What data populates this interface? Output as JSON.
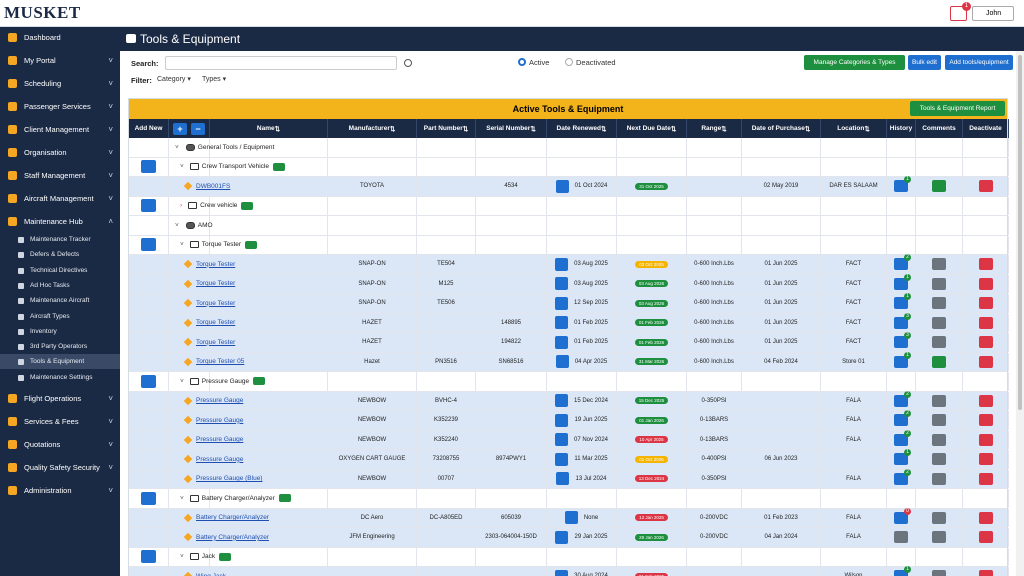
{
  "header": {
    "logo": "MUSKET",
    "notification_count": 1,
    "user": "John"
  },
  "sidebar": {
    "items": [
      {
        "label": "Dashboard",
        "expandable": false
      },
      {
        "label": "My Portal",
        "expandable": true
      },
      {
        "label": "Scheduling",
        "expandable": true
      },
      {
        "label": "Passenger Services",
        "expandable": true
      },
      {
        "label": "Client Management",
        "expandable": true
      },
      {
        "label": "Organisation",
        "expandable": true
      },
      {
        "label": "Staff Management",
        "expandable": true
      },
      {
        "label": "Aircraft Management",
        "expandable": true
      },
      {
        "label": "Maintenance Hub",
        "expandable": true,
        "expanded": true,
        "children": [
          {
            "label": "Maintenance Tracker"
          },
          {
            "label": "Defers & Defects"
          },
          {
            "label": "Technical Directives"
          },
          {
            "label": "Ad Hoc Tasks"
          },
          {
            "label": "Maintenance Aircraft"
          },
          {
            "label": "Aircraft Types"
          },
          {
            "label": "Inventory"
          },
          {
            "label": "3rd Party Operators"
          },
          {
            "label": "Tools & Equipment",
            "active": true
          },
          {
            "label": "Maintenance Settings"
          }
        ]
      },
      {
        "label": "Flight Operations",
        "expandable": true
      },
      {
        "label": "Services & Fees",
        "expandable": true
      },
      {
        "label": "Quotations",
        "expandable": true
      },
      {
        "label": "Quality Safety Security",
        "expandable": true
      },
      {
        "label": "Administration",
        "expandable": true
      }
    ]
  },
  "page": {
    "title": "Tools & Equipment",
    "search_label": "Search:",
    "status_options": [
      {
        "label": "Active",
        "selected": true
      },
      {
        "label": "Deactivated",
        "selected": false
      }
    ],
    "buttons": [
      {
        "label": "Manage Categories & Types",
        "color": "#1e8f3e"
      },
      {
        "label": "Bulk edit",
        "color": "#1f6fd1"
      },
      {
        "label": "Add tools/equipment",
        "color": "#1f6fd1"
      }
    ],
    "filter_label": "Filter:",
    "filters": [
      "Category",
      "Types"
    ]
  },
  "table": {
    "title": "Active Tools & Equipment",
    "report_button": "Tools & Equipment Report",
    "columns": [
      "Add New",
      "Name",
      "Manufacturer",
      "Part Number",
      "Serial Number",
      "Date Renewed",
      "Next Due Date",
      "Range",
      "Date of Purchase",
      "Location",
      "History",
      "Comments",
      "Deactivate"
    ],
    "rows": [
      {
        "kind": "group",
        "name": "General Tools / Equipment"
      },
      {
        "kind": "category",
        "name": "Crew Transport Vehicle",
        "collapsed": false
      },
      {
        "kind": "item",
        "name": "DWB001FS",
        "manufacturer": "TOYOTA",
        "part_number": null,
        "serial_number": "4534",
        "date_renewed": "01 Oct 2024",
        "next_due_date": "31 Oct 2025",
        "due_color": "#1e8f3e",
        "range": null,
        "date_of_purchase": "02 May 2019",
        "location": "DAR ES SALAAM",
        "history_count": 1,
        "comment_color": "#1e8f3e"
      },
      {
        "kind": "category",
        "name": "Crew vehicle",
        "collapsed": true
      },
      {
        "kind": "group",
        "name": "AMO"
      },
      {
        "kind": "category",
        "name": "Torque Tester",
        "collapsed": false
      },
      {
        "kind": "item",
        "name": "Torque Tester",
        "manufacturer": "SNAP-ON",
        "part_number": "TE504",
        "serial_number": null,
        "date_renewed": "03 Aug 2025",
        "next_due_date": "03 Oct 2025",
        "due_color": "#f4b400",
        "range": "0-600 Inch.Lbs",
        "date_of_purchase": "01 Jun 2025",
        "location": "FACT",
        "history_count": 2,
        "comment_color": "#6c757d"
      },
      {
        "kind": "item",
        "name": "Torque Tester",
        "manufacturer": "SNAP-ON",
        "part_number": "M125",
        "serial_number": null,
        "date_renewed": "03 Aug 2025",
        "next_due_date": "03 Aug 2026",
        "due_color": "#1e8f3e",
        "range": "0-600 Inch.Lbs",
        "date_of_purchase": "01 Jun 2025",
        "location": "FACT",
        "history_count": 1,
        "comment_color": "#6c757d"
      },
      {
        "kind": "item",
        "name": "Torque Tester",
        "manufacturer": "SNAP-ON",
        "part_number": "TE506",
        "serial_number": null,
        "date_renewed": "12 Sep 2025",
        "next_due_date": "03 Aug 2026",
        "due_color": "#1e8f3e",
        "range": "0-600 Inch.Lbs",
        "date_of_purchase": "01 Jun 2025",
        "location": "FACT",
        "history_count": 1,
        "comment_color": "#6c757d"
      },
      {
        "kind": "item",
        "name": "Torque Tester",
        "manufacturer": "HAZET",
        "part_number": null,
        "serial_number": "148895",
        "date_renewed": "01 Feb 2025",
        "next_due_date": "01 Feb 2026",
        "due_color": "#1e8f3e",
        "range": "0-600 Inch.Lbs",
        "date_of_purchase": "01 Jun 2025",
        "location": "FACT",
        "history_count": 3,
        "comment_color": "#6c757d"
      },
      {
        "kind": "item",
        "name": "Torque Tester",
        "manufacturer": "HAZET",
        "part_number": null,
        "serial_number": "194822",
        "date_renewed": "01 Feb 2025",
        "next_due_date": "01 Feb 2026",
        "due_color": "#1e8f3e",
        "range": "0-600 Inch.Lbs",
        "date_of_purchase": "01 Jun 2025",
        "location": "FACT",
        "history_count": 3,
        "comment_color": "#6c757d"
      },
      {
        "kind": "item",
        "name": "Torque Tester 05",
        "manufacturer": "Hazet",
        "part_number": "PN3516",
        "serial_number": "SN68516",
        "date_renewed": "04 Apr 2025",
        "next_due_date": "31 Mar 2026",
        "due_color": "#1e8f3e",
        "range": "0-600 Inch.Lbs",
        "date_of_purchase": "04 Feb 2024",
        "location": "Store 01",
        "history_count": 1,
        "comment_color": "#1e8f3e"
      },
      {
        "kind": "category",
        "name": "Pressure Gauge",
        "collapsed": false
      },
      {
        "kind": "item",
        "name": "Pressure Gauge",
        "manufacturer": "NEWBOW",
        "part_number": "BVHC-4",
        "serial_number": null,
        "date_renewed": "15 Dec 2024",
        "next_due_date": "15 Dec 2025",
        "due_color": "#1e8f3e",
        "range": "0-350PSI",
        "date_of_purchase": null,
        "location": "FALA",
        "history_count": 2,
        "comment_color": "#6c757d"
      },
      {
        "kind": "item",
        "name": "Pressure Gauge",
        "manufacturer": "NEWBOW",
        "part_number": "K352239",
        "serial_number": null,
        "date_renewed": "19 Jun 2025",
        "next_due_date": "01 Jan 2026",
        "due_color": "#1e8f3e",
        "range": "0-13BARS",
        "date_of_purchase": null,
        "location": "FALA",
        "history_count": 2,
        "comment_color": "#6c757d"
      },
      {
        "kind": "item",
        "name": "Pressure Gauge",
        "manufacturer": "NEWBOW",
        "part_number": "K352240",
        "serial_number": null,
        "date_renewed": "07 Nov 2024",
        "next_due_date": "10 Apr 2025",
        "due_color": "#dc3545",
        "range": "0-13BARS",
        "date_of_purchase": null,
        "location": "FALA",
        "history_count": 2,
        "comment_color": "#6c757d"
      },
      {
        "kind": "item",
        "name": "Pressure Gauge",
        "manufacturer": "OXYGEN CART GAUGE",
        "part_number": "73208755",
        "serial_number": "8974PWY1",
        "date_renewed": "11 Mar 2025",
        "next_due_date": "01 Oct 2025",
        "due_color": "#f4b400",
        "range": "0-400PSI",
        "date_of_purchase": "06 Jun 2023",
        "location": null,
        "history_count": 1,
        "comment_color": "#6c757d"
      },
      {
        "kind": "item",
        "name": "Pressure Gauge (Blue)",
        "manufacturer": "NEWBOW",
        "part_number": "00707",
        "serial_number": null,
        "date_renewed": "13 Jul 2024",
        "next_due_date": "13 Dec 2024",
        "due_color": "#dc3545",
        "range": "0-350PSI",
        "date_of_purchase": null,
        "location": "FALA",
        "history_count": 2,
        "comment_color": "#6c757d"
      },
      {
        "kind": "category",
        "name": "Battery Charger/Analyzer",
        "collapsed": false
      },
      {
        "kind": "item",
        "name": "Battery Charger/Analyzer",
        "manufacturer": "DC Aero",
        "part_number": "DC-A805ED",
        "serial_number": "605039",
        "date_renewed": "None",
        "next_due_date": "13 Jan 2025",
        "due_color": "#dc3545",
        "range": "0-200VDC",
        "date_of_purchase": "01 Feb 2023",
        "location": "FALA",
        "history_count": 0,
        "comment_color": "#6c757d"
      },
      {
        "kind": "item",
        "name": "Battery Charger/Analyzer",
        "manufacturer": "JFM Engineering",
        "part_number": null,
        "serial_number": "2303-064004-150D",
        "date_renewed": "29 Jan 2025",
        "next_due_date": "29 Jan 2026",
        "due_color": "#1e8f3e",
        "range": "0-200VDC",
        "date_of_purchase": "04 Jan 2024",
        "location": "FALA",
        "history_count": null,
        "comment_color": "#6c757d"
      },
      {
        "kind": "category",
        "name": "Jack",
        "collapsed": false
      },
      {
        "kind": "item",
        "name": "Wing Jack",
        "manufacturer": null,
        "part_number": null,
        "serial_number": null,
        "date_renewed": "30 Aug 2024",
        "next_due_date": "01 Feb 2025",
        "due_color": "#dc3545",
        "range": null,
        "date_of_purchase": null,
        "location": "Wilson",
        "history_count": 1,
        "comment_color": "#6c757d"
      }
    ]
  }
}
